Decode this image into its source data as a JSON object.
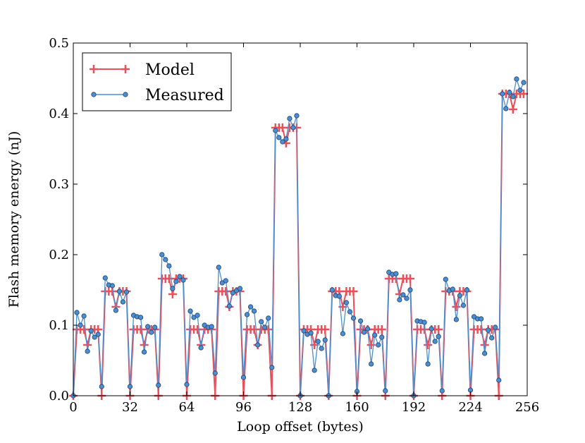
{
  "chart_data": {
    "type": "line",
    "title": "",
    "xlabel": "Loop offset (bytes)",
    "ylabel": "Flash memory energy (nJ)",
    "xlim": [
      0,
      256
    ],
    "ylim": [
      0,
      0.5
    ],
    "xticks": [
      0,
      32,
      64,
      96,
      128,
      160,
      192,
      224,
      256
    ],
    "xtick_labels": [
      "0",
      "32",
      "64",
      "96",
      "128",
      "160",
      "192",
      "224",
      "256"
    ],
    "yticks": [
      0.0,
      0.1,
      0.2,
      0.3,
      0.4,
      0.5
    ],
    "ytick_labels": [
      "0.0",
      "0.1",
      "0.2",
      "0.3",
      "0.4",
      "0.5"
    ],
    "grid": false,
    "legend_position": "top-left",
    "series": [
      {
        "name": "Model",
        "color": "#e8505b",
        "marker": "plus",
        "x": [
          0,
          2,
          4,
          6,
          8,
          10,
          12,
          14,
          16,
          18,
          20,
          22,
          24,
          26,
          28,
          30,
          32,
          34,
          36,
          38,
          40,
          42,
          44,
          46,
          48,
          50,
          52,
          54,
          56,
          58,
          60,
          62,
          64,
          66,
          68,
          70,
          72,
          74,
          76,
          78,
          80,
          82,
          84,
          86,
          88,
          90,
          92,
          94,
          96,
          98,
          100,
          102,
          104,
          106,
          108,
          110,
          112,
          114,
          116,
          118,
          120,
          122,
          124,
          126,
          128,
          130,
          132,
          134,
          136,
          138,
          140,
          142,
          144,
          146,
          148,
          150,
          152,
          154,
          156,
          158,
          160,
          162,
          164,
          166,
          168,
          170,
          172,
          174,
          176,
          178,
          180,
          182,
          184,
          186,
          188,
          190,
          192,
          194,
          196,
          198,
          200,
          202,
          204,
          206,
          208,
          210,
          212,
          214,
          216,
          218,
          220,
          222,
          224,
          226,
          228,
          230,
          232,
          234,
          236,
          238,
          240,
          242,
          244,
          246,
          248,
          250,
          252,
          254
        ],
        "y": [
          0,
          0.094,
          0.094,
          0.094,
          0.072,
          0.094,
          0.094,
          0.094,
          0,
          0.148,
          0.148,
          0.148,
          0.126,
          0.148,
          0.148,
          0.148,
          0,
          0.094,
          0.094,
          0.094,
          0.072,
          0.094,
          0.094,
          0.094,
          0,
          0.166,
          0.166,
          0.166,
          0.144,
          0.166,
          0.166,
          0.166,
          0,
          0.094,
          0.094,
          0.094,
          0.072,
          0.094,
          0.094,
          0.094,
          0,
          0.148,
          0.148,
          0.148,
          0.126,
          0.148,
          0.148,
          0.148,
          0,
          0.094,
          0.094,
          0.094,
          0.072,
          0.094,
          0.094,
          0.094,
          0,
          0.38,
          0.38,
          0.38,
          0.358,
          0.38,
          0.38,
          0.38,
          0,
          0.094,
          0.094,
          0.094,
          0.072,
          0.094,
          0.094,
          0.094,
          0,
          0.148,
          0.148,
          0.148,
          0.126,
          0.148,
          0.148,
          0.148,
          0,
          0.094,
          0.094,
          0.094,
          0.072,
          0.094,
          0.094,
          0.094,
          0,
          0.166,
          0.166,
          0.166,
          0.144,
          0.166,
          0.166,
          0.166,
          0,
          0.094,
          0.094,
          0.094,
          0.072,
          0.094,
          0.094,
          0.094,
          0,
          0.148,
          0.148,
          0.148,
          0.126,
          0.148,
          0.148,
          0.148,
          0,
          0.094,
          0.094,
          0.094,
          0.072,
          0.094,
          0.094,
          0.094,
          0,
          0.428,
          0.428,
          0.428,
          0.406,
          0.428,
          0.428,
          0.428
        ]
      },
      {
        "name": "Measured",
        "color": "#4a8fd4",
        "marker": "circle",
        "x": [
          0,
          2,
          4,
          6,
          8,
          10,
          12,
          14,
          16,
          18,
          20,
          22,
          24,
          26,
          28,
          30,
          32,
          34,
          36,
          38,
          40,
          42,
          44,
          46,
          48,
          50,
          52,
          54,
          56,
          58,
          60,
          62,
          64,
          66,
          68,
          70,
          72,
          74,
          76,
          78,
          80,
          82,
          84,
          86,
          88,
          90,
          92,
          94,
          96,
          98,
          100,
          102,
          104,
          106,
          108,
          110,
          112,
          114,
          116,
          118,
          120,
          122,
          124,
          126,
          128,
          130,
          132,
          134,
          136,
          138,
          140,
          142,
          144,
          146,
          148,
          150,
          152,
          154,
          156,
          158,
          160,
          162,
          164,
          166,
          168,
          170,
          172,
          174,
          176,
          178,
          180,
          182,
          184,
          186,
          188,
          190,
          192,
          194,
          196,
          198,
          200,
          202,
          204,
          206,
          208,
          210,
          212,
          214,
          216,
          218,
          220,
          222,
          224,
          226,
          228,
          230,
          232,
          234,
          236,
          238,
          240,
          242,
          244,
          246,
          248,
          250,
          252,
          254
        ],
        "y": [
          0,
          0.118,
          0.1,
          0.113,
          0.063,
          0.092,
          0.083,
          0.087,
          0.013,
          0.167,
          0.157,
          0.156,
          0.121,
          0.148,
          0.133,
          0.147,
          0.013,
          0.114,
          0.112,
          0.111,
          0.062,
          0.098,
          0.09,
          0.097,
          0.015,
          0.2,
          0.193,
          0.184,
          0.152,
          0.162,
          0.169,
          0.164,
          0.016,
          0.12,
          0.111,
          0.114,
          0.068,
          0.1,
          0.097,
          0.098,
          0.032,
          0.182,
          0.16,
          0.163,
          0.127,
          0.146,
          0.149,
          0.152,
          0.026,
          0.115,
          0.126,
          0.12,
          0.072,
          0.105,
          0.097,
          0.11,
          0.04,
          0.376,
          0.366,
          0.36,
          0.364,
          0.393,
          0.38,
          0.397,
          0,
          0.092,
          0.087,
          0.089,
          0.036,
          0.077,
          0.067,
          0.079,
          0,
          0.15,
          0.142,
          0.141,
          0.088,
          0.132,
          0.119,
          0.11,
          0.006,
          0.106,
          0.09,
          0.095,
          0.045,
          0.086,
          0.072,
          0.083,
          0.007,
          0.175,
          0.172,
          0.173,
          0.136,
          0.143,
          0.138,
          0.15,
          0,
          0.106,
          0.105,
          0.104,
          0.045,
          0.095,
          0.077,
          0.084,
          0.007,
          0.165,
          0.149,
          0.151,
          0.108,
          0.142,
          0.128,
          0.15,
          0.008,
          0.112,
          0.109,
          0.109,
          0.06,
          0.093,
          0.082,
          0.097,
          0.022,
          0.428,
          0.407,
          0.43,
          0.424,
          0.449,
          0.433,
          0.444
        ]
      }
    ]
  }
}
